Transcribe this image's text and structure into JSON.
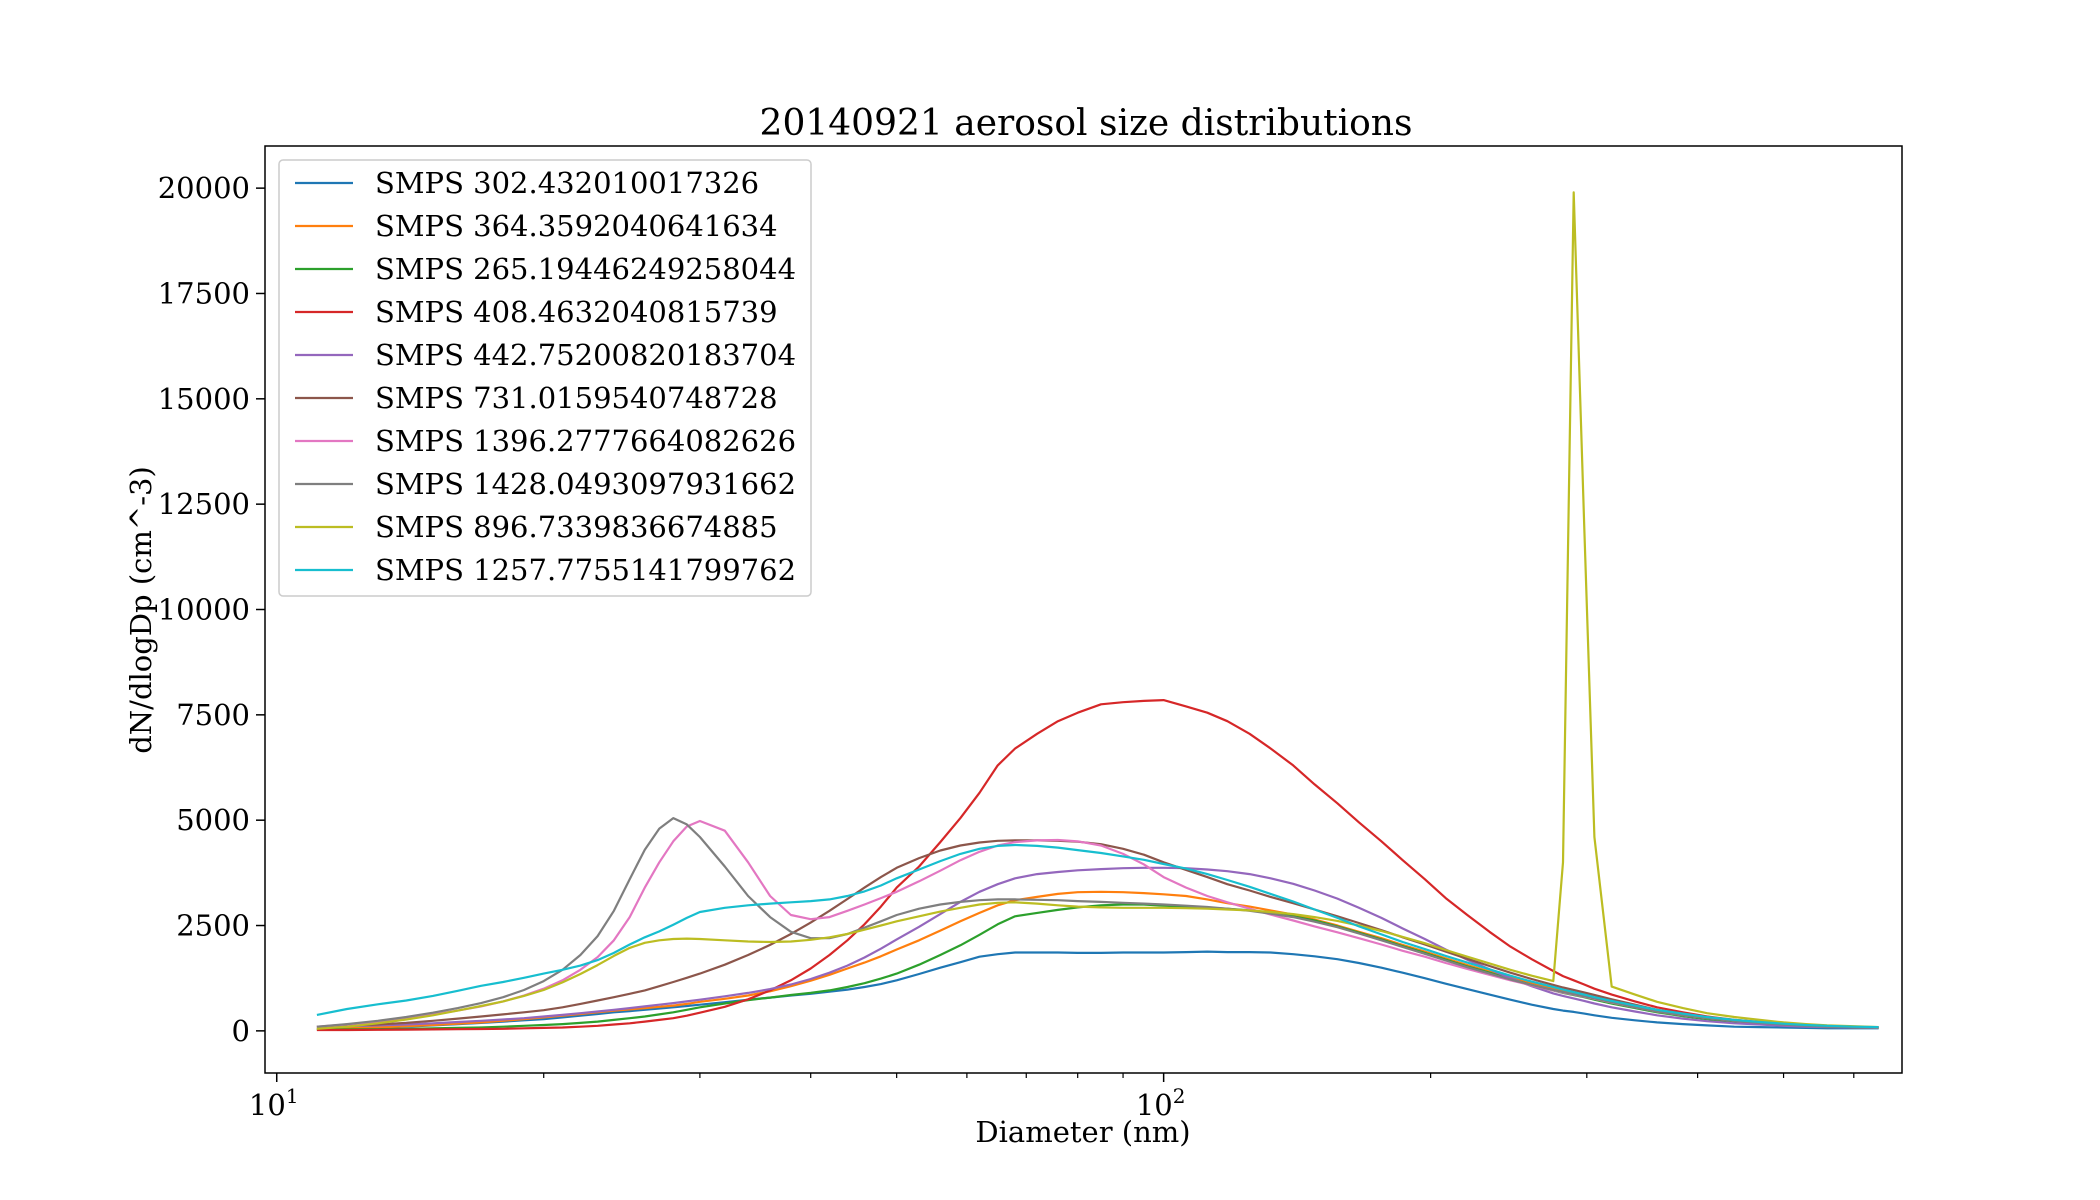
{
  "chart_data": {
    "type": "line",
    "title": "20140921 aerosol size distributions",
    "xlabel": "Diameter (nm)",
    "ylabel": "dN/dlogDp (cm^-3)",
    "xscale": "log",
    "xlim": [
      9.7,
      680
    ],
    "ylim": [
      -1000,
      21000
    ],
    "yticks": [
      0,
      2500,
      5000,
      7500,
      10000,
      12500,
      15000,
      17500,
      20000
    ],
    "xtick_labels": [
      {
        "base": "10",
        "exp": "1"
      },
      {
        "base": "10",
        "exp": "2"
      }
    ],
    "xticks": [
      10,
      100
    ],
    "grid": false,
    "legend_position": "upper-left",
    "x": [
      11.1,
      12,
      13,
      14,
      15,
      16,
      17,
      18,
      19,
      20,
      21,
      22,
      23,
      24,
      25,
      26,
      27,
      28,
      29,
      30,
      32,
      34,
      36,
      38,
      40,
      42,
      44,
      46,
      48,
      50,
      53,
      56,
      59,
      62,
      65,
      68,
      72,
      76,
      80,
      85,
      90,
      95,
      100,
      106,
      112,
      118,
      125,
      132,
      140,
      148,
      157,
      166,
      176,
      186,
      197,
      208,
      220,
      233,
      246,
      260,
      275,
      282,
      290,
      298,
      306,
      320,
      340,
      360,
      385,
      410,
      440,
      470,
      500,
      530,
      560,
      600,
      640
    ],
    "series": [
      {
        "name": "SMPS 302.432010017326",
        "color": "#1f77b4",
        "values": [
          50,
          60,
          80,
          100,
          130,
          160,
          190,
          220,
          250,
          280,
          320,
          360,
          400,
          440,
          470,
          500,
          530,
          560,
          590,
          620,
          680,
          740,
          790,
          840,
          880,
          930,
          980,
          1040,
          1110,
          1200,
          1350,
          1500,
          1630,
          1760,
          1820,
          1860,
          1860,
          1860,
          1850,
          1850,
          1860,
          1860,
          1860,
          1870,
          1880,
          1870,
          1870,
          1860,
          1820,
          1770,
          1700,
          1610,
          1500,
          1380,
          1250,
          1120,
          990,
          860,
          740,
          620,
          520,
          480,
          450,
          410,
          370,
          310,
          250,
          200,
          160,
          130,
          100,
          90,
          80,
          70,
          60,
          60,
          60
        ]
      },
      {
        "name": "SMPS 364.3592040641634",
        "color": "#ff7f0e",
        "values": [
          50,
          60,
          80,
          110,
          140,
          170,
          200,
          240,
          280,
          320,
          360,
          400,
          440,
          480,
          510,
          540,
          570,
          600,
          640,
          690,
          760,
          840,
          940,
          1060,
          1190,
          1330,
          1480,
          1620,
          1770,
          1930,
          2150,
          2380,
          2600,
          2800,
          2980,
          3100,
          3180,
          3250,
          3290,
          3300,
          3290,
          3270,
          3240,
          3200,
          3120,
          3030,
          2950,
          2860,
          2760,
          2640,
          2500,
          2350,
          2200,
          2040,
          1880,
          1720,
          1560,
          1410,
          1270,
          1130,
          1000,
          950,
          900,
          850,
          790,
          700,
          580,
          480,
          390,
          310,
          240,
          200,
          160,
          130,
          110,
          90,
          80
        ]
      },
      {
        "name": "SMPS 265.19446249258044",
        "color": "#2ca02c",
        "values": [
          30,
          35,
          40,
          50,
          60,
          70,
          80,
          100,
          120,
          140,
          160,
          190,
          220,
          260,
          300,
          340,
          390,
          440,
          500,
          560,
          650,
          730,
          790,
          850,
          900,
          960,
          1040,
          1130,
          1240,
          1360,
          1570,
          1800,
          2030,
          2280,
          2530,
          2720,
          2800,
          2870,
          2930,
          2980,
          3000,
          3000,
          2970,
          2950,
          2920,
          2900,
          2860,
          2800,
          2720,
          2620,
          2480,
          2330,
          2170,
          2010,
          1850,
          1690,
          1530,
          1380,
          1230,
          1090,
          960,
          900,
          850,
          800,
          740,
          650,
          540,
          440,
          350,
          280,
          220,
          180,
          140,
          110,
          90,
          80,
          70
        ]
      },
      {
        "name": "SMPS 408.4632040815739",
        "color": "#d62728",
        "values": [
          20,
          20,
          25,
          30,
          35,
          40,
          45,
          50,
          60,
          70,
          80,
          100,
          120,
          150,
          180,
          220,
          260,
          300,
          360,
          430,
          570,
          750,
          960,
          1200,
          1480,
          1800,
          2150,
          2530,
          2950,
          3400,
          3900,
          4480,
          5050,
          5650,
          6300,
          6700,
          7050,
          7350,
          7550,
          7750,
          7800,
          7830,
          7850,
          7700,
          7550,
          7350,
          7050,
          6700,
          6300,
          5850,
          5400,
          4950,
          4500,
          4050,
          3600,
          3150,
          2750,
          2350,
          2000,
          1700,
          1420,
          1300,
          1200,
          1100,
          1000,
          860,
          700,
          560,
          440,
          340,
          260,
          210,
          170,
          140,
          110,
          90,
          80
        ]
      },
      {
        "name": "SMPS 442.75200820183704",
        "color": "#9467bd",
        "values": [
          100,
          110,
          130,
          150,
          180,
          210,
          240,
          270,
          300,
          340,
          380,
          420,
          460,
          500,
          540,
          580,
          620,
          660,
          700,
          740,
          820,
          900,
          990,
          1100,
          1230,
          1380,
          1550,
          1740,
          1950,
          2170,
          2470,
          2770,
          3060,
          3300,
          3480,
          3620,
          3720,
          3770,
          3810,
          3840,
          3860,
          3870,
          3870,
          3860,
          3830,
          3790,
          3720,
          3620,
          3490,
          3330,
          3140,
          2920,
          2680,
          2430,
          2180,
          1930,
          1690,
          1460,
          1250,
          1060,
          890,
          830,
          770,
          710,
          650,
          560,
          460,
          370,
          290,
          230,
          180,
          150,
          120,
          100,
          90,
          80,
          70
        ]
      },
      {
        "name": "SMPS 731.0159540748728",
        "color": "#8c564b",
        "values": [
          100,
          120,
          150,
          190,
          240,
          290,
          340,
          390,
          440,
          490,
          560,
          640,
          720,
          800,
          880,
          960,
          1060,
          1160,
          1260,
          1360,
          1570,
          1800,
          2040,
          2300,
          2570,
          2850,
          3130,
          3400,
          3650,
          3870,
          4100,
          4280,
          4400,
          4470,
          4510,
          4520,
          4520,
          4510,
          4490,
          4430,
          4320,
          4180,
          4000,
          3820,
          3650,
          3480,
          3330,
          3180,
          3030,
          2880,
          2720,
          2560,
          2390,
          2220,
          2050,
          1880,
          1710,
          1540,
          1380,
          1230,
          1090,
          1030,
          970,
          910,
          850,
          750,
          620,
          500,
          400,
          320,
          250,
          200,
          160,
          130,
          110,
          90,
          80
        ]
      },
      {
        "name": "SMPS 1396.2777664082626",
        "color": "#e377c2",
        "values": [
          100,
          150,
          220,
          300,
          390,
          480,
          580,
          700,
          840,
          1000,
          1200,
          1450,
          1750,
          2150,
          2700,
          3400,
          4000,
          4500,
          4850,
          4980,
          4750,
          4000,
          3200,
          2750,
          2650,
          2700,
          2850,
          3000,
          3150,
          3300,
          3550,
          3800,
          4050,
          4250,
          4400,
          4480,
          4520,
          4530,
          4500,
          4400,
          4200,
          3950,
          3650,
          3400,
          3200,
          3050,
          2900,
          2760,
          2620,
          2480,
          2340,
          2200,
          2050,
          1900,
          1760,
          1610,
          1470,
          1330,
          1200,
          1080,
          960,
          910,
          860,
          810,
          760,
          670,
          560,
          460,
          370,
          300,
          240,
          200,
          160,
          130,
          110,
          90,
          80
        ]
      },
      {
        "name": "SMPS 1428.0493097931662",
        "color": "#7f7f7f",
        "values": [
          100,
          160,
          240,
          330,
          430,
          540,
          660,
          800,
          970,
          1180,
          1450,
          1800,
          2250,
          2850,
          3600,
          4300,
          4800,
          5050,
          4900,
          4600,
          3900,
          3200,
          2700,
          2350,
          2200,
          2200,
          2300,
          2450,
          2600,
          2750,
          2900,
          3000,
          3060,
          3100,
          3120,
          3120,
          3110,
          3100,
          3080,
          3060,
          3040,
          3020,
          3000,
          2970,
          2940,
          2900,
          2850,
          2780,
          2700,
          2590,
          2460,
          2310,
          2150,
          1990,
          1830,
          1670,
          1510,
          1360,
          1220,
          1090,
          970,
          920,
          870,
          820,
          770,
          680,
          560,
          460,
          370,
          300,
          240,
          190,
          150,
          120,
          100,
          90,
          80
        ]
      },
      {
        "name": "SMPS 896.7339836674885",
        "color": "#bcbd22",
        "values": [
          50,
          100,
          180,
          270,
          370,
          480,
          590,
          700,
          830,
          970,
          1150,
          1350,
          1560,
          1780,
          1970,
          2090,
          2150,
          2180,
          2190,
          2180,
          2150,
          2120,
          2110,
          2120,
          2160,
          2220,
          2300,
          2400,
          2500,
          2600,
          2720,
          2830,
          2920,
          3000,
          3040,
          3050,
          3020,
          2980,
          2950,
          2930,
          2920,
          2920,
          2920,
          2910,
          2900,
          2880,
          2860,
          2820,
          2770,
          2700,
          2610,
          2500,
          2370,
          2230,
          2080,
          1920,
          1760,
          1600,
          1450,
          1310,
          1180,
          4000,
          19900,
          12000,
          4600,
          1050,
          860,
          690,
          540,
          420,
          330,
          260,
          200,
          160,
          130,
          110,
          90
        ]
      },
      {
        "name": "SMPS 1257.7755141799762",
        "color": "#17becf",
        "values": [
          380,
          520,
          630,
          720,
          830,
          950,
          1070,
          1160,
          1260,
          1360,
          1450,
          1550,
          1680,
          1850,
          2050,
          2220,
          2360,
          2520,
          2680,
          2820,
          2920,
          2980,
          3020,
          3050,
          3080,
          3120,
          3200,
          3310,
          3450,
          3620,
          3830,
          4030,
          4200,
          4320,
          4390,
          4410,
          4390,
          4350,
          4290,
          4220,
          4140,
          4060,
          3960,
          3850,
          3720,
          3580,
          3420,
          3250,
          3070,
          2880,
          2680,
          2480,
          2290,
          2110,
          1940,
          1780,
          1620,
          1460,
          1310,
          1170,
          1040,
          980,
          920,
          860,
          800,
          710,
          600,
          500,
          410,
          330,
          260,
          210,
          170,
          140,
          120,
          100,
          90
        ]
      }
    ]
  }
}
